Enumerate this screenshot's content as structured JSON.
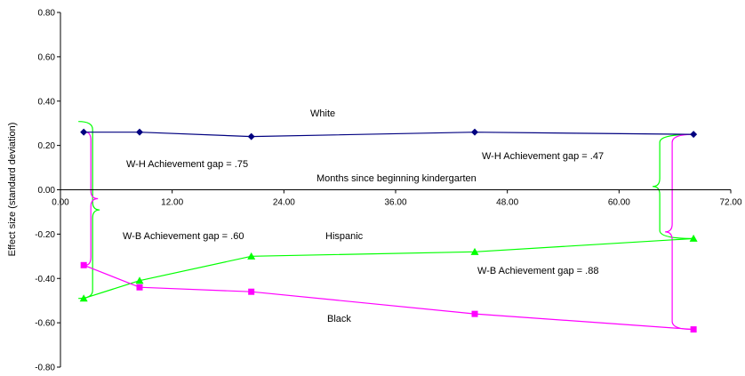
{
  "chart_data": {
    "type": "line",
    "xlabel": "Months since beginning kindergarten",
    "ylabel": "Effect size (standard deviation)",
    "xlim": [
      0,
      72
    ],
    "ylim": [
      -0.8,
      0.8
    ],
    "x_ticks": [
      "0.00",
      "12.00",
      "24.00",
      "36.00",
      "48.00",
      "60.00",
      "72.00"
    ],
    "y_ticks": [
      "0.80",
      "0.60",
      "0.40",
      "0.20",
      "0.00",
      "-0.20",
      "-0.40",
      "-0.60",
      "-0.80"
    ],
    "grid": false,
    "legend": "none",
    "series": [
      {
        "name": "White",
        "color": "#000080",
        "marker": "diamond",
        "points": [
          [
            2.5,
            0.26
          ],
          [
            8.5,
            0.26
          ],
          [
            20.5,
            0.24
          ],
          [
            44.5,
            0.26
          ],
          [
            68,
            0.25
          ]
        ]
      },
      {
        "name": "Hispanic",
        "color": "#00ff00",
        "marker": "triangle",
        "points": [
          [
            2.5,
            -0.49
          ],
          [
            8.5,
            -0.41
          ],
          [
            20.5,
            -0.3
          ],
          [
            44.5,
            -0.28
          ],
          [
            68,
            -0.22
          ]
        ]
      },
      {
        "name": "Black",
        "color": "#ff00ff",
        "marker": "square",
        "points": [
          [
            2.5,
            -0.34
          ],
          [
            8.5,
            -0.44
          ],
          [
            20.5,
            -0.46
          ],
          [
            44.5,
            -0.56
          ],
          [
            68,
            -0.63
          ]
        ]
      }
    ],
    "annotations": [
      {
        "text": "W-H Achievement gap = .75",
        "color": "#00ff00"
      },
      {
        "text": "W-B Achievement gap = .60",
        "color": "#ff00ff"
      },
      {
        "text": "W-H Achievement gap = .47",
        "color": "#00ff00"
      },
      {
        "text": "W-B Achievement gap = .88",
        "color": "#ff00ff"
      }
    ]
  }
}
